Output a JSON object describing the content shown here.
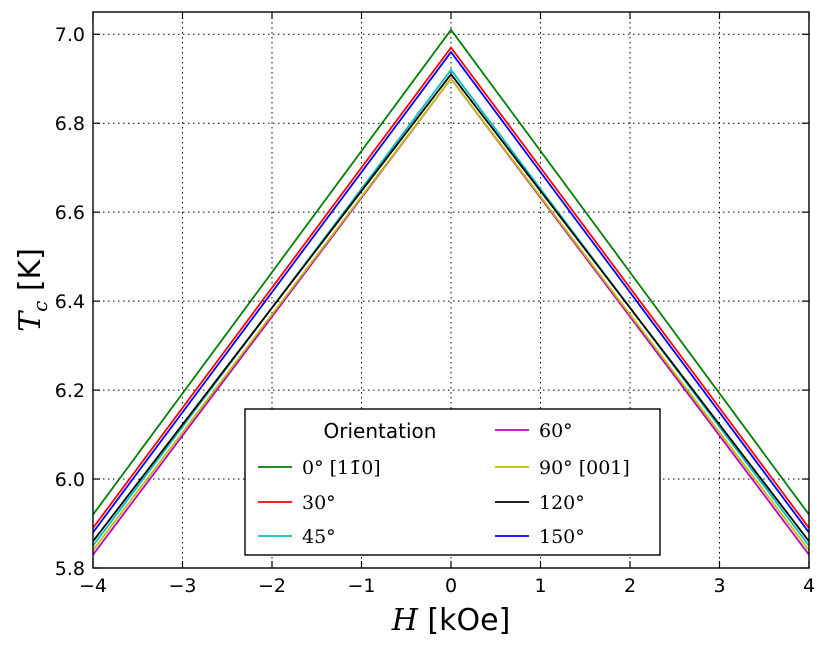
{
  "chart_data": {
    "type": "line",
    "xlabel_var": "H",
    "xlabel_unit": " [kOe]",
    "ylabel_var": "T",
    "ylabel_sub": "c",
    "ylabel_unit": " [K]",
    "xlim": [
      -4,
      4
    ],
    "ylim": [
      5.8,
      7.05
    ],
    "xticks": [
      -4,
      -3,
      -2,
      -1,
      0,
      1,
      2,
      3,
      4
    ],
    "xtick_labels": [
      "−4",
      "−3",
      "−2",
      "−1",
      "0",
      "1",
      "2",
      "3",
      "4"
    ],
    "yticks": [
      5.8,
      6.0,
      6.2,
      6.4,
      6.6,
      6.8,
      7.0
    ],
    "ytick_labels": [
      "5.8",
      "6.0",
      "6.2",
      "6.4",
      "6.6",
      "6.8",
      "7.0"
    ],
    "grid": true,
    "legend": {
      "title": "Orientation",
      "placement": "bottom-center"
    },
    "series": [
      {
        "name": "0°  [11̄0]",
        "color": "#008000",
        "x": [
          -4,
          0,
          4
        ],
        "y": [
          5.92,
          7.01,
          5.92
        ]
      },
      {
        "name": "30°",
        "color": "#ff0000",
        "x": [
          -4,
          0,
          4
        ],
        "y": [
          5.89,
          6.97,
          5.89
        ]
      },
      {
        "name": "45°",
        "color": "#00bfbf",
        "x": [
          -4,
          0,
          4
        ],
        "y": [
          5.85,
          6.92,
          5.85
        ]
      },
      {
        "name": "60°",
        "color": "#bf00bf",
        "x": [
          -4,
          0,
          4
        ],
        "y": [
          5.83,
          6.9,
          5.83
        ]
      },
      {
        "name": "90°  [001]",
        "color": "#bfbf00",
        "x": [
          -4,
          0,
          4
        ],
        "y": [
          5.84,
          6.9,
          5.84
        ]
      },
      {
        "name": "120°",
        "color": "#000000",
        "x": [
          -4,
          0,
          4
        ],
        "y": [
          5.86,
          6.91,
          5.86
        ]
      },
      {
        "name": "150°",
        "color": "#0000ff",
        "x": [
          -4,
          0,
          4
        ],
        "y": [
          5.88,
          6.96,
          5.88
        ]
      }
    ]
  }
}
